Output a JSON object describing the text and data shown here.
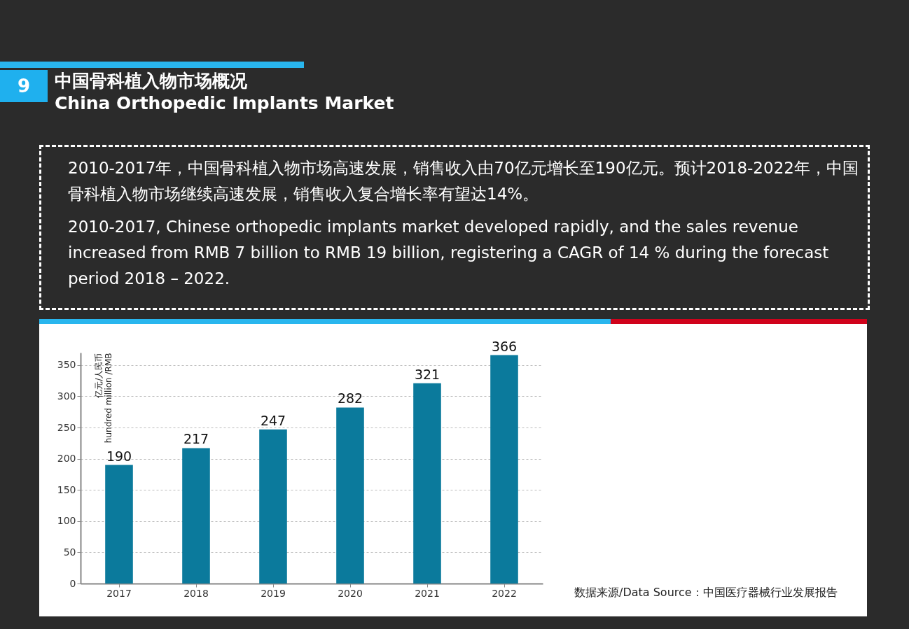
{
  "chart_data": {
    "type": "bar",
    "title": "中国骨科植入物市场概况",
    "subtitle": "China Orthopedic Implants Market",
    "ylabel": "亿元/人民币\nhundred million /RMB",
    "categories": [
      "2017",
      "2018",
      "2019",
      "2020",
      "2021",
      "2022"
    ],
    "values": [
      190,
      217,
      247,
      282,
      321,
      366
    ],
    "color": "#0b7a9c",
    "ylim": [
      0,
      370
    ],
    "yticks": [
      0,
      50,
      100,
      150,
      200,
      250,
      300,
      350
    ],
    "grid": "y",
    "data_labels": true,
    "annotations": [
      "9",
      "2010-2017年，中国骨科植入物市场高速发展，销售收入由70亿元增长至190亿元。预计2018-2022年，中国骨科植入物市场继续高速发展，销售收入复合增长率有望达14%。",
      "2010-2017, Chinese orthopedic implants market developed rapidly, and the sales revenue increased from RMB 7 billion to RMB 19 billion, registering a CAGR of 14 % during the forecast period 2018 – 2022.",
      "数据来源/Data Source：中国医疗器械行业发展报告"
    ]
  }
}
